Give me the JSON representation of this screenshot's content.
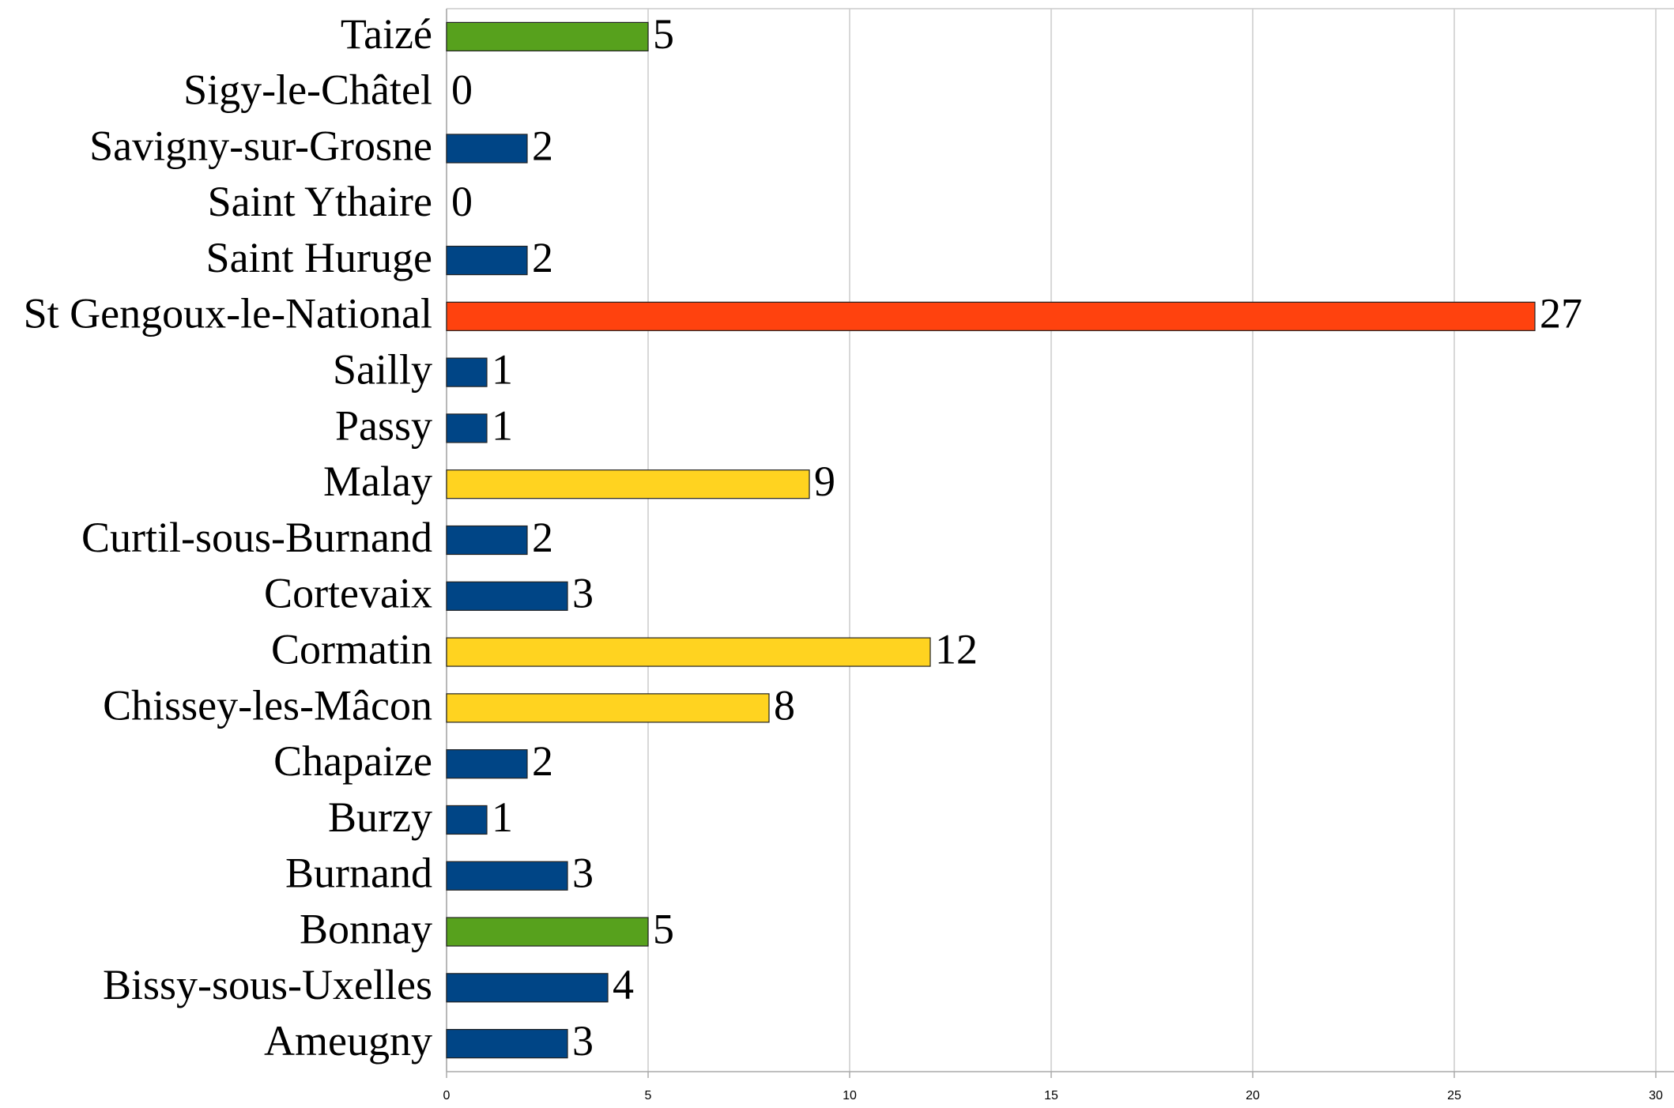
{
  "chart_data": {
    "type": "barh",
    "categories": [
      "Taizé",
      "Sigy-le-Châtel",
      "Savigny-sur-Grosne",
      "Saint Ythaire",
      "Saint Huruge",
      "St Gengoux-le-National",
      "Sailly",
      "Passy",
      "Malay",
      "Curtil-sous-Burnand",
      "Cortevaix",
      "Cormatin",
      "Chissey-les-Mâcon",
      "Chapaize",
      "Burzy",
      "Burnand",
      "Bonnay",
      "Bissy-sous-Uxelles",
      "Ameugny"
    ],
    "values": [
      5,
      0,
      2,
      0,
      2,
      27,
      1,
      1,
      9,
      2,
      3,
      12,
      8,
      2,
      1,
      3,
      5,
      4,
      3
    ],
    "colors": [
      "#57a11d",
      "#004586",
      "#004586",
      "#004586",
      "#004586",
      "#ff420e",
      "#004586",
      "#004586",
      "#ffd320",
      "#004586",
      "#004586",
      "#ffd320",
      "#ffd320",
      "#004586",
      "#004586",
      "#004586",
      "#57a11d",
      "#004586",
      "#004586"
    ],
    "xlim": [
      0,
      30
    ],
    "xticks": [
      0,
      5,
      10,
      15,
      20,
      25,
      30
    ],
    "grid": true
  }
}
